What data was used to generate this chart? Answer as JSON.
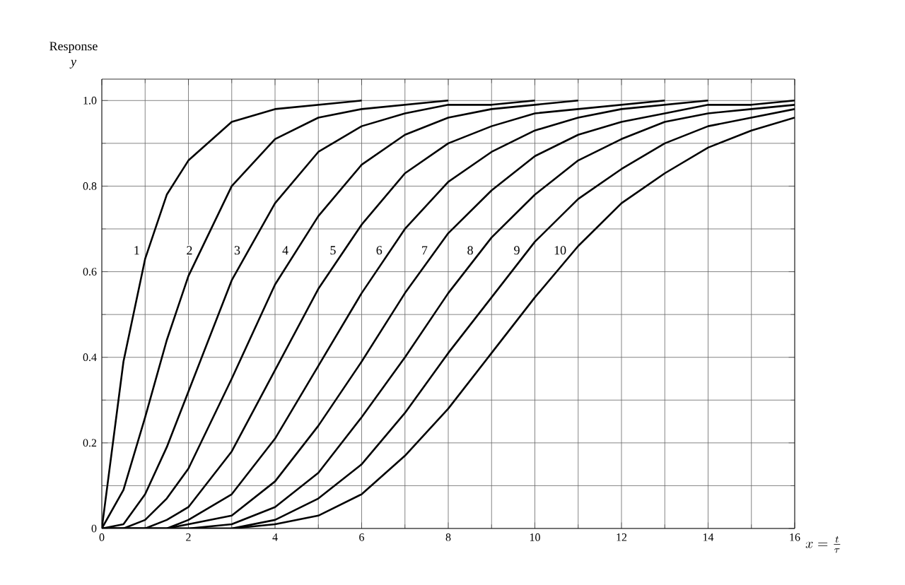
{
  "chart_data": {
    "type": "line",
    "xlabel": "x=\\frac{t}{\\tau}",
    "ylabel": "Response *y*",
    "x": [
      0,
      0.5,
      1,
      1.5,
      2,
      3,
      4,
      5,
      6,
      7,
      8,
      9,
      10,
      11,
      12,
      13,
      14,
      15,
      16
    ],
    "series": [
      {
        "name": "1",
        "color": "#000000",
        "x": [
          0,
          0.5,
          1,
          1.5,
          2,
          3,
          4,
          5,
          6
        ],
        "values": [
          0,
          0.39,
          0.63,
          0.78,
          0.86,
          0.95,
          0.98,
          0.99,
          1
        ]
      },
      {
        "name": "2",
        "color": "#000000",
        "x": [
          0,
          0.5,
          1,
          1.5,
          2,
          3,
          4,
          5,
          6,
          7,
          8
        ],
        "values": [
          0,
          0.09,
          0.26,
          0.44,
          0.59,
          0.8,
          0.91,
          0.96,
          0.98,
          0.99,
          1
        ]
      },
      {
        "name": "3",
        "color": "#000000",
        "x": [
          0,
          0.5,
          1,
          1.5,
          2,
          3,
          4,
          5,
          6,
          7,
          8,
          9,
          10
        ],
        "values": [
          0,
          0.01,
          0.08,
          0.19,
          0.32,
          0.58,
          0.76,
          0.88,
          0.94,
          0.97,
          0.99,
          0.99,
          1
        ]
      },
      {
        "name": "4",
        "color": "#000000",
        "x": [
          0,
          0.5,
          1,
          1.5,
          2,
          3,
          4,
          5,
          6,
          7,
          8,
          9,
          10,
          11
        ],
        "values": [
          0,
          0,
          0.02,
          0.07,
          0.14,
          0.35,
          0.57,
          0.73,
          0.85,
          0.92,
          0.96,
          0.98,
          0.99,
          1
        ]
      },
      {
        "name": "5",
        "color": "#000000",
        "x": [
          0,
          0.5,
          1,
          1.5,
          2,
          3,
          4,
          5,
          6,
          7,
          8,
          9,
          10,
          11,
          12,
          13
        ],
        "values": [
          0,
          0,
          0,
          0.02,
          0.05,
          0.18,
          0.37,
          0.56,
          0.71,
          0.83,
          0.9,
          0.94,
          0.97,
          0.98,
          0.99,
          1
        ]
      },
      {
        "name": "6",
        "color": "#000000",
        "x": [
          0,
          0.5,
          1,
          1.5,
          2,
          3,
          4,
          5,
          6,
          7,
          8,
          9,
          10,
          11,
          12,
          13,
          14
        ],
        "values": [
          0,
          0,
          0,
          0,
          0.02,
          0.08,
          0.21,
          0.38,
          0.55,
          0.7,
          0.81,
          0.88,
          0.93,
          0.96,
          0.98,
          0.99,
          1
        ]
      },
      {
        "name": "7",
        "color": "#000000",
        "values": [
          0,
          0,
          0,
          0,
          0.01,
          0.03,
          0.11,
          0.24,
          0.39,
          0.55,
          0.69,
          0.79,
          0.87,
          0.92,
          0.95,
          0.97,
          0.99,
          0.99,
          1
        ]
      },
      {
        "name": "8",
        "color": "#000000",
        "values": [
          0,
          0,
          0,
          0,
          0,
          0.01,
          0.05,
          0.13,
          0.26,
          0.4,
          0.55,
          0.68,
          0.78,
          0.86,
          0.91,
          0.95,
          0.97,
          0.98,
          0.99
        ]
      },
      {
        "name": "9",
        "color": "#000000",
        "values": [
          0,
          0,
          0,
          0,
          0,
          0,
          0.02,
          0.07,
          0.15,
          0.27,
          0.41,
          0.54,
          0.67,
          0.77,
          0.84,
          0.9,
          0.94,
          0.96,
          0.98
        ]
      },
      {
        "name": "10",
        "color": "#000000",
        "values": [
          0,
          0,
          0,
          0,
          0,
          0,
          0.01,
          0.03,
          0.08,
          0.17,
          0.28,
          0.41,
          0.54,
          0.66,
          0.76,
          0.83,
          0.89,
          0.93,
          0.96
        ]
      }
    ],
    "xlim": [
      0,
      16
    ],
    "ylim": [
      0,
      1.05
    ],
    "xticks": [
      0,
      2,
      4,
      6,
      8,
      10,
      12,
      14,
      16
    ],
    "yticks": [
      0,
      0.2,
      0.4,
      0.6,
      0.8,
      {
        "value": 1,
        "label": "1.0"
      }
    ],
    "grid": true,
    "legend": false
  }
}
